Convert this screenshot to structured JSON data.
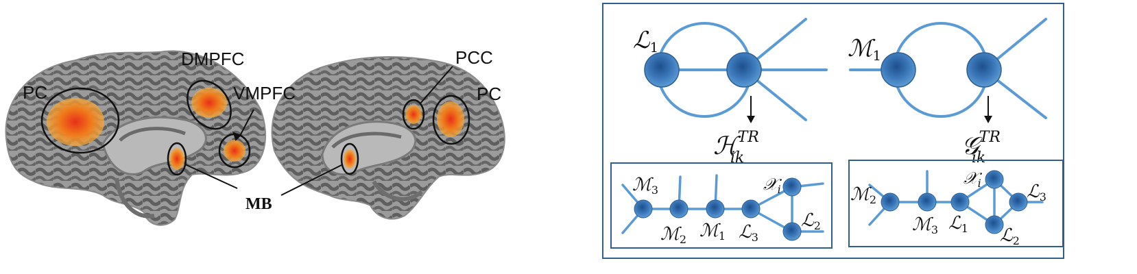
{
  "brain_panel": {
    "labels": {
      "pc_left": "PC",
      "dmpfc": "DMPFC",
      "vmpfc": "VMPFC",
      "mb": "MB",
      "pcc": "PCC",
      "pc_right": "PC"
    }
  },
  "graph_panel": {
    "top_left": {
      "node_label": "ℒ",
      "node_sub": "1",
      "result_main": "ℋ",
      "result_sup": "TR",
      "result_sub": "ik"
    },
    "top_right": {
      "node_label": "ℳ",
      "node_sub": "1",
      "result_main": "𝒢",
      "result_sup": "TR",
      "result_sub": "ik"
    },
    "bottom_left": {
      "labels": [
        {
          "main": "ℳ",
          "sub": "3"
        },
        {
          "main": "ℳ",
          "sub": "2"
        },
        {
          "main": "ℳ",
          "sub": "1"
        },
        {
          "main": "ℒ",
          "sub": "3"
        },
        {
          "main": "𝒳",
          "sub": "i"
        },
        {
          "main": "ℒ",
          "sub": "2"
        }
      ]
    },
    "bottom_right": {
      "labels": [
        {
          "main": "ℳ",
          "sub": "2"
        },
        {
          "main": "ℳ",
          "sub": "3"
        },
        {
          "main": "ℒ",
          "sub": "1"
        },
        {
          "main": "𝒳",
          "sub": "i"
        },
        {
          "main": "ℒ",
          "sub": "3"
        },
        {
          "main": "ℒ",
          "sub": "2"
        }
      ]
    }
  },
  "colors": {
    "node": "#3a76b8",
    "edge": "#5b9bd5",
    "frame": "#2e5f8f",
    "brain_light": "#9d9d9d",
    "brain_dark": "#5c5c5c",
    "activation": "#f07a1a"
  }
}
